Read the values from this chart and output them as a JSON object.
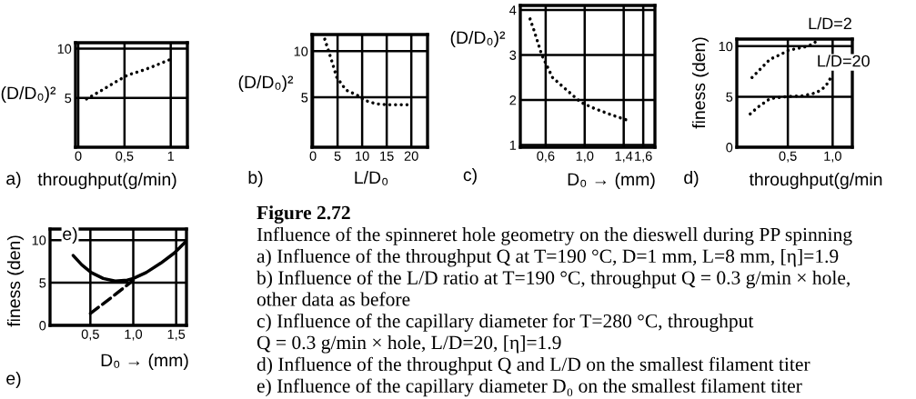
{
  "chart_data": [
    {
      "type": "line",
      "xlabel": "throughput(g/min)",
      "ylabel": "(D/D₀)²",
      "annotations": [
        "a)"
      ],
      "xlim": [
        -0.03,
        1.18
      ],
      "ylim": [
        0,
        10.6
      ],
      "xticks": [
        0,
        {
          "value": 0.5,
          "label": "0,5"
        },
        1
      ],
      "yticks": [
        5,
        10
      ],
      "grid": true,
      "series": [
        {
          "color": "#000000",
          "line_style": "dotted",
          "x": [
            0.09,
            0.24,
            0.4,
            0.53,
            0.73,
            0.89,
            1.02
          ],
          "values": [
            4.9,
            5.7,
            6.6,
            7.3,
            7.9,
            8.5,
            9.0
          ]
        }
      ]
    },
    {
      "type": "line",
      "xlabel": "L/D₀",
      "ylabel": "(D/D₀)²",
      "annotations": [
        "b)"
      ],
      "xlim": [
        -0.2,
        23.3
      ],
      "ylim": [
        -0.4,
        11.8
      ],
      "xticks": [
        0,
        5,
        10,
        15,
        20
      ],
      "yticks": [
        5,
        10
      ],
      "grid": true,
      "series": [
        {
          "color": "#000000",
          "line_style": "dotted",
          "x": [
            2.4,
            3.9,
            4.8,
            6.7,
            9.1,
            10.4,
            12.8,
            15.3,
            20.2
          ],
          "values": [
            11.3,
            8.8,
            7.2,
            5.8,
            5.2,
            4.7,
            4.3,
            4.2,
            4.2
          ]
        }
      ]
    },
    {
      "type": "line",
      "xlabel": "D₀ → (mm)",
      "ylabel": "(D/D₀)²",
      "annotations": [
        "c)"
      ],
      "xlim": [
        0.34,
        1.72
      ],
      "ylim": [
        0.95,
        4.1
      ],
      "xticks": [
        {
          "value": 0.6,
          "label": "0,6"
        },
        {
          "value": 1.0,
          "label": "1,0"
        },
        {
          "value": 1.4,
          "label": "1,4"
        },
        {
          "value": 1.6,
          "label": "1,6"
        }
      ],
      "yticks": [
        1,
        2,
        3,
        4
      ],
      "grid": true,
      "series": [
        {
          "color": "#000000",
          "line_style": "dotted",
          "x": [
            0.44,
            0.48,
            0.56,
            0.67,
            0.8,
            0.96,
            1.11,
            1.3,
            1.44
          ],
          "values": [
            3.8,
            3.55,
            3.0,
            2.5,
            2.25,
            1.95,
            1.8,
            1.65,
            1.55
          ]
        }
      ]
    },
    {
      "type": "line",
      "xlabel": "throughput(g/min",
      "ylabel": "finess (den)",
      "annotations": [
        "d)"
      ],
      "xlim": [
        -0.07,
        1.22
      ],
      "ylim": [
        0,
        10.7
      ],
      "xticks": [
        {
          "value": 0.5,
          "label": "0,5"
        },
        {
          "value": 1.0,
          "label": "1,0"
        }
      ],
      "yticks": [
        0,
        5,
        10
      ],
      "grid": true,
      "series": [
        {
          "name": "L/D=2",
          "color": "#000000",
          "line_style": "dotted",
          "x": [
            0.1,
            0.2,
            0.3,
            0.4,
            0.51,
            0.68,
            0.78,
            0.83
          ],
          "values": [
            6.9,
            7.8,
            8.7,
            9.1,
            9.6,
            9.9,
            10.2,
            10.6
          ]
        },
        {
          "name": "L/D=20",
          "color": "#000000",
          "line_style": "dotted",
          "x": [
            0.08,
            0.17,
            0.3,
            0.47,
            0.68,
            0.82,
            0.92,
            0.98
          ],
          "values": [
            3.3,
            4.0,
            4.8,
            5.0,
            5.1,
            5.4,
            6.0,
            6.9
          ]
        }
      ]
    },
    {
      "type": "line",
      "xlabel": "D₀ → (mm)",
      "ylabel": "finess (den)",
      "annotations": [
        "e)",
        "e)"
      ],
      "xlim": [
        0.03,
        1.62
      ],
      "ylim": [
        0,
        11.3
      ],
      "xticks": [
        {
          "value": 0.5,
          "label": "0,5"
        },
        {
          "value": 1.0,
          "label": "1,0"
        },
        {
          "value": 1.5,
          "label": "1,5"
        }
      ],
      "yticks": [
        0,
        5,
        10
      ],
      "grid": true,
      "series": [
        {
          "color": "#000000",
          "line_style": "solid",
          "x": [
            0.3,
            0.4,
            0.51,
            0.65,
            0.79,
            0.93,
            1.0,
            1.15,
            1.32,
            1.48,
            1.61
          ],
          "values": [
            8.2,
            7.1,
            6.2,
            5.5,
            5.2,
            5.3,
            5.5,
            6.2,
            7.3,
            8.5,
            9.8
          ]
        },
        {
          "color": "#000000",
          "line_style": "dashed",
          "x": [
            0.5,
            0.75,
            1.0
          ],
          "values": [
            1.4,
            3.3,
            5.3
          ]
        }
      ]
    },
    {
      "type": "other",
      "title": "Figure 2.72",
      "subtitle": "Influence of the spinneret hole geometry on the dieswell during PP spinning",
      "annotations": [
        "a) Influence of the throughput Q at T=190 °C, D=1 mm, L=8 mm, [η]=1.9",
        "b) Influence of the L/D ratio at T=190 °C, throughput Q = 0.3 g/min × hole,",
        "other data as before",
        "c) Influence of the capillary diameter for T=280 °C, throughput",
        "Q = 0.3 g/min × hole, L/D=20, [η]=1.9",
        "d) Influence of the throughput Q and L/D on the smallest filament titer",
        "e) Influence of the capillary diameter D₀ on the smallest filament titer"
      ]
    }
  ]
}
